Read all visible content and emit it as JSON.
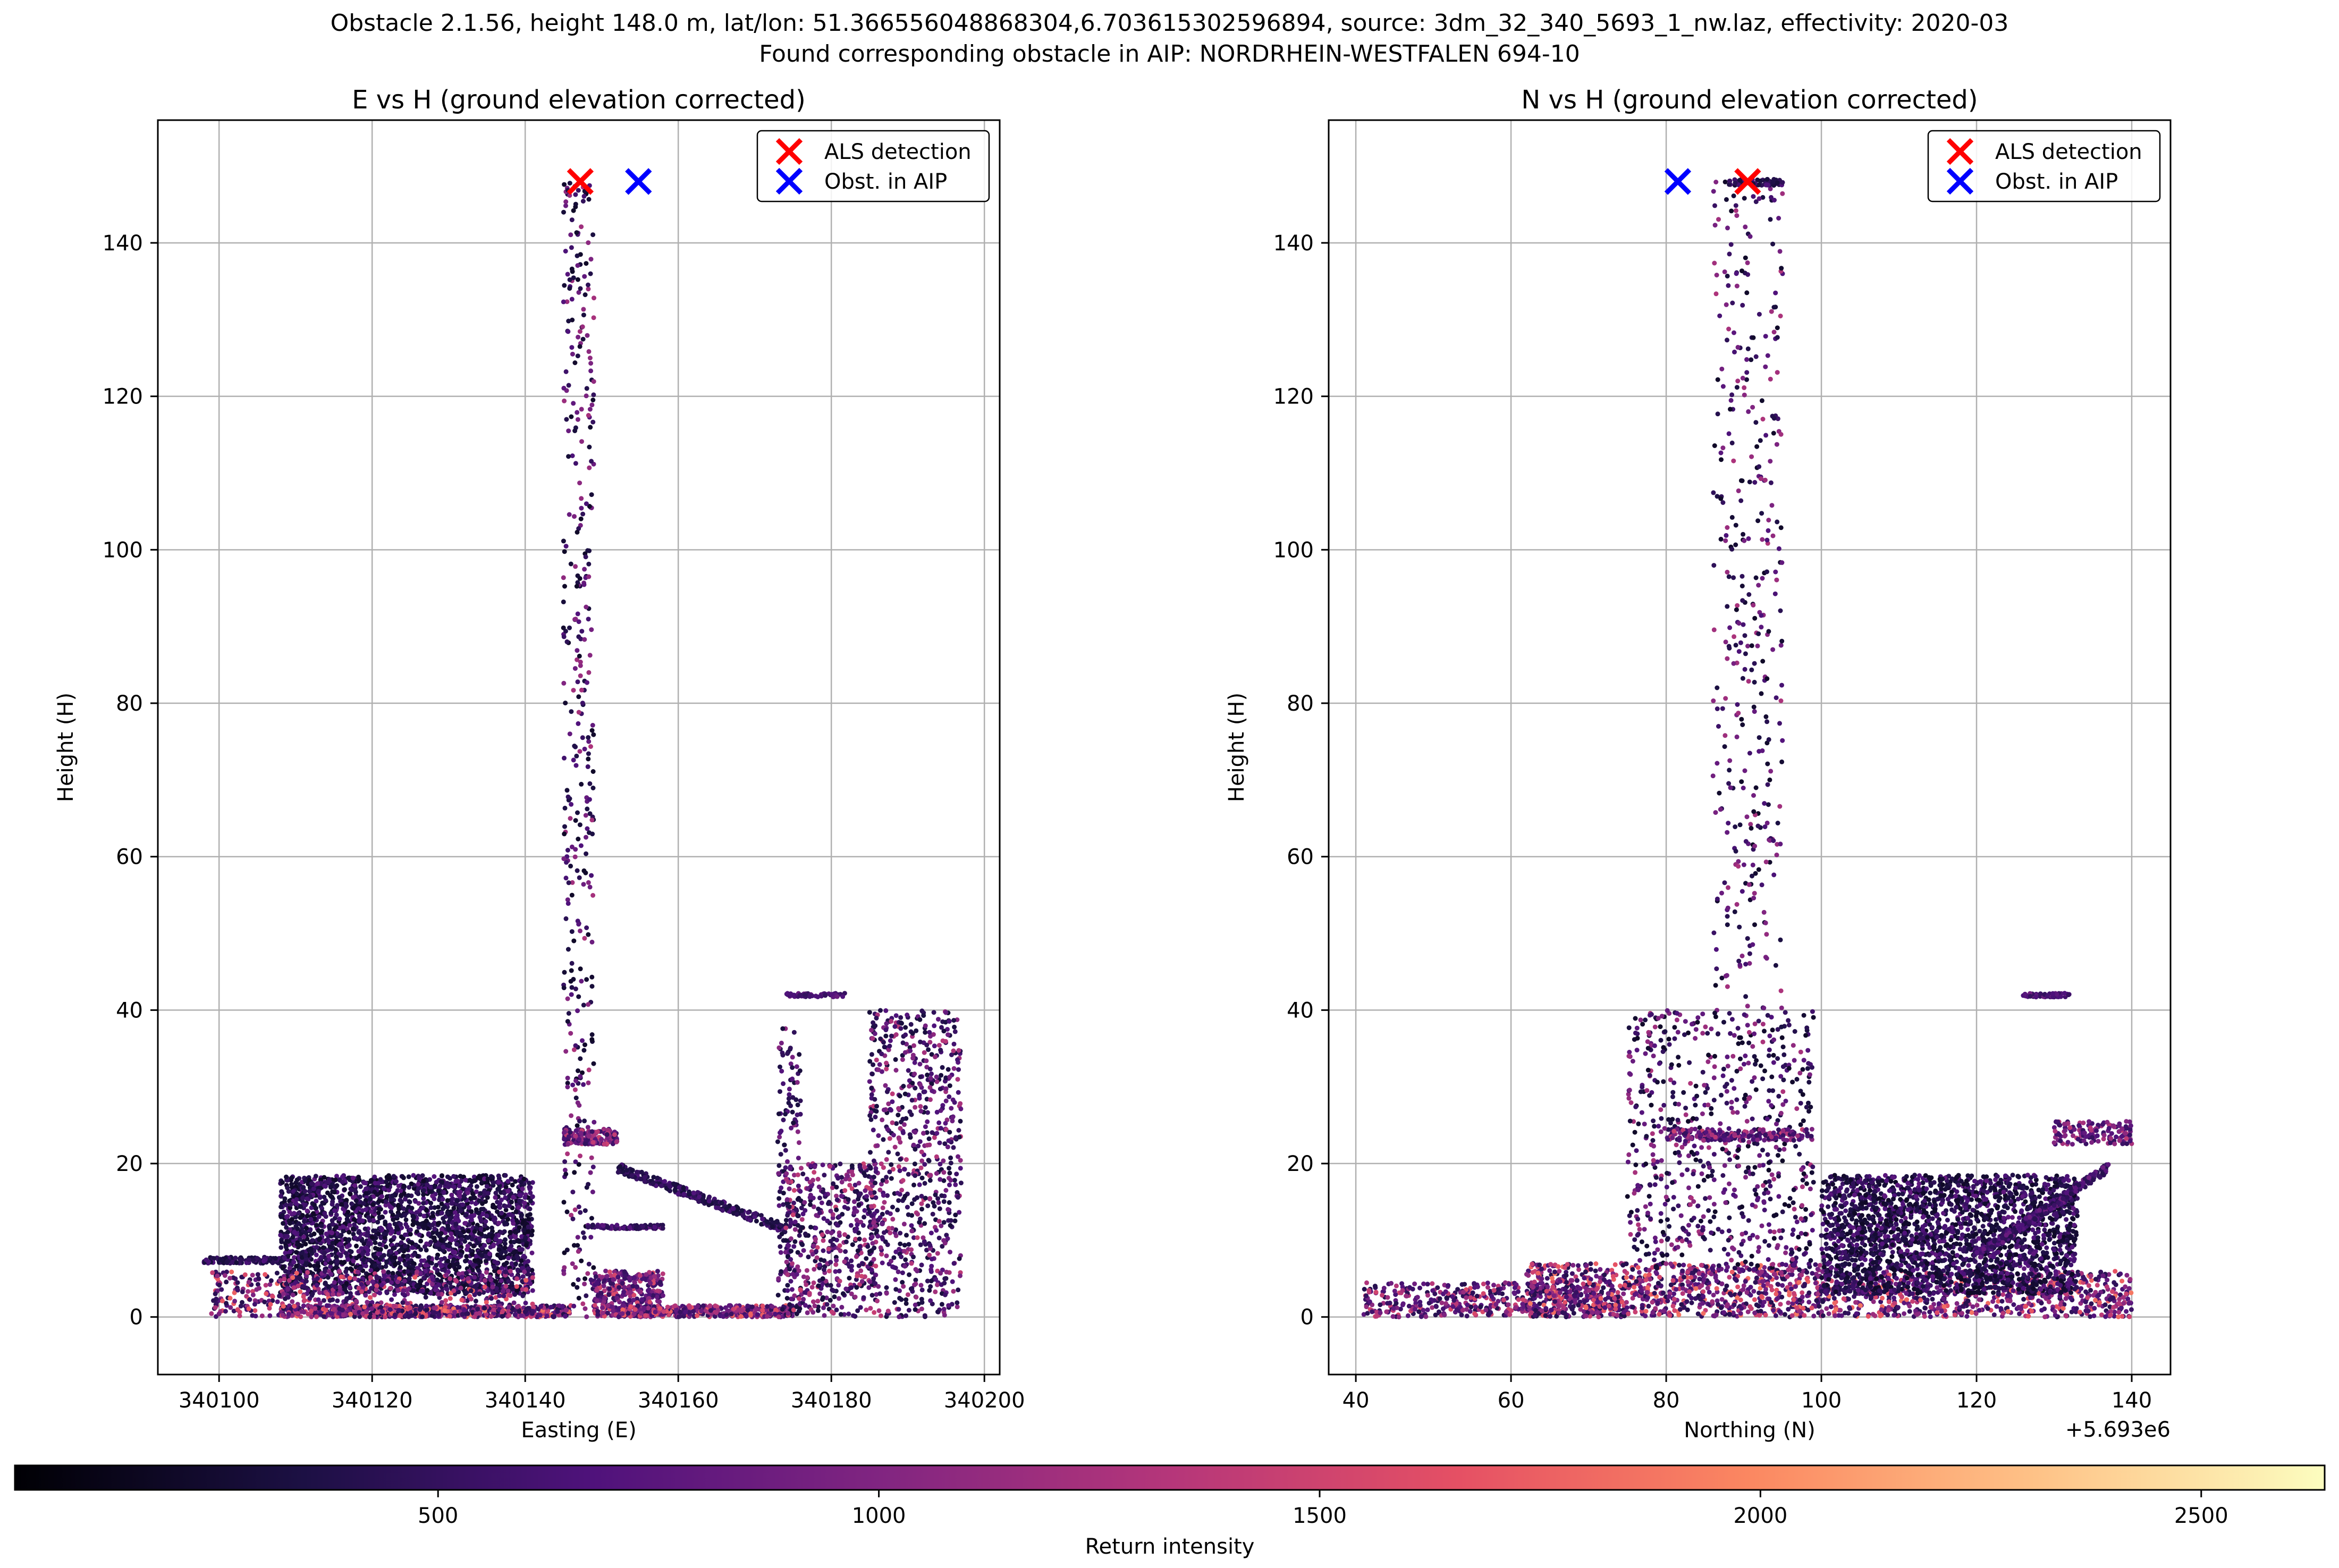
{
  "suptitle": {
    "line1": "Obstacle 2.1.56, height 148.0 m, lat/lon: 51.366556048868304,6.703615302596894, source: 3dm_32_340_5693_1_nw.laz, effectivity: 2020-03",
    "line2": "Found corresponding obstacle in AIP: NORDRHEIN-WESTFALEN 694-10"
  },
  "chart_data": [
    {
      "type": "scatter",
      "title": "E vs H (ground elevation corrected)",
      "xlabel": "Easting (E)",
      "ylabel": "Height (H)",
      "xlim": [
        340092,
        340202
      ],
      "ylim": [
        -7.5,
        156
      ],
      "xticks": [
        340100,
        340120,
        340140,
        340160,
        340180,
        340200
      ],
      "yticks": [
        0,
        20,
        40,
        60,
        80,
        100,
        120,
        140
      ],
      "grid": true,
      "legend_position": "top-right",
      "series": [
        {
          "name": "ALS detection",
          "marker": "x",
          "color": "#ff0000",
          "x": [
            340147.2
          ],
          "y": [
            148.0
          ]
        },
        {
          "name": "Obst. in AIP",
          "marker": "x",
          "color": "#0000ff",
          "x": [
            340154.8
          ],
          "y": [
            148.0
          ]
        }
      ],
      "point_cloud": {
        "colormap": "magma",
        "color_variable": "Return intensity",
        "clusters": [
          {
            "x_range": [
              340098,
              340108
            ],
            "y_range": [
              7.0,
              7.8
            ],
            "intensity": [
              300,
              700
            ],
            "count": 140
          },
          {
            "x_range": [
              340108,
              340141
            ],
            "y_range": [
              3,
              18.5
            ],
            "intensity": [
              200,
              800
            ],
            "count": 2600
          },
          {
            "x_range": [
              340099,
              340141
            ],
            "y_range": [
              0,
              6
            ],
            "intensity": [
              400,
              1800
            ],
            "count": 500
          },
          {
            "x_range": [
              340108,
              340146
            ],
            "y_range": [
              0,
              1.5
            ],
            "intensity": [
              400,
              1900
            ],
            "count": 700
          },
          {
            "x_range": [
              340145,
              340149
            ],
            "y_range": [
              0,
              148
            ],
            "intensity": [
              200,
              1300
            ],
            "count": 420
          },
          {
            "x_range": [
              340145,
              340152
            ],
            "y_range": [
              22.5,
              24.5
            ],
            "intensity": [
              500,
              1500
            ],
            "count": 160
          },
          {
            "x_range": [
              340148,
              340158
            ],
            "y_range": [
              11.5,
              12
            ],
            "intensity": [
              400,
              900
            ],
            "count": 90
          },
          {
            "x_range": [
              340149,
              340158
            ],
            "y_range": [
              0,
              6
            ],
            "intensity": [
              500,
              1600
            ],
            "count": 350
          },
          {
            "x_range": [
              340152,
              340175
            ],
            "y_range": [
              0,
              1.5
            ],
            "intensity": [
              500,
              1800
            ],
            "count": 400
          },
          {
            "x_range": [
              340152,
              340174
            ],
            "y_range": [
              11.5,
              19.5
            ],
            "intensity": [
              300,
              700
            ],
            "count": 260,
            "shape": "diagonal"
          },
          {
            "x_range": [
              340173,
              340176
            ],
            "y_range": [
              0,
              38
            ],
            "intensity": [
              300,
              1100
            ],
            "count": 140
          },
          {
            "x_range": [
              340174,
              340182
            ],
            "y_range": [
              41.7,
              42.2
            ],
            "intensity": [
              500,
              900
            ],
            "count": 60
          },
          {
            "x_range": [
              340174,
              340186
            ],
            "y_range": [
              0,
              20
            ],
            "intensity": [
              300,
              1500
            ],
            "count": 500
          },
          {
            "x_range": [
              340185,
              340197
            ],
            "y_range": [
              0,
              40
            ],
            "intensity": [
              300,
              1400
            ],
            "count": 700
          }
        ]
      }
    },
    {
      "type": "scatter",
      "title": "N vs H (ground elevation corrected)",
      "xlabel": "Northing (N)",
      "ylabel": "Height (H)",
      "x_offset_label": "+5.693e6",
      "xlim": [
        36.5,
        145
      ],
      "ylim": [
        -7.5,
        156
      ],
      "xticks": [
        40,
        60,
        80,
        100,
        120,
        140
      ],
      "yticks": [
        0,
        20,
        40,
        60,
        80,
        100,
        120,
        140
      ],
      "grid": true,
      "legend_position": "top-right",
      "series": [
        {
          "name": "ALS detection",
          "marker": "x",
          "color": "#ff0000",
          "x": [
            90.5
          ],
          "y": [
            148.0
          ]
        },
        {
          "name": "Obst. in AIP",
          "marker": "x",
          "color": "#0000ff",
          "x": [
            81.5
          ],
          "y": [
            148.0
          ]
        }
      ],
      "point_cloud": {
        "colormap": "magma",
        "color_variable": "Return intensity",
        "clusters": [
          {
            "x_range": [
              41,
              75
            ],
            "y_range": [
              0,
              4.5
            ],
            "intensity": [
              400,
              1600
            ],
            "count": 500
          },
          {
            "x_range": [
              62,
              100
            ],
            "y_range": [
              0,
              7
            ],
            "intensity": [
              400,
              1900
            ],
            "count": 900
          },
          {
            "x_range": [
              75,
              99
            ],
            "y_range": [
              6,
              40
            ],
            "intensity": [
              200,
              1300
            ],
            "count": 700
          },
          {
            "x_range": [
              80,
              99
            ],
            "y_range": [
              23,
              24.5
            ],
            "intensity": [
              500,
              1500
            ],
            "count": 200
          },
          {
            "x_range": [
              86,
              95
            ],
            "y_range": [
              40,
              148
            ],
            "intensity": [
              200,
              1300
            ],
            "count": 380
          },
          {
            "x_range": [
              88,
              95
            ],
            "y_range": [
              147.5,
              148.3
            ],
            "intensity": [
              300,
              700
            ],
            "count": 60
          },
          {
            "x_range": [
              100,
              140
            ],
            "y_range": [
              0,
              6
            ],
            "intensity": [
              400,
              1900
            ],
            "count": 700
          },
          {
            "x_range": [
              100,
              133
            ],
            "y_range": [
              3,
              18.5
            ],
            "intensity": [
              200,
              800
            ],
            "count": 2300
          },
          {
            "x_range": [
              120,
              137
            ],
            "y_range": [
              8,
              19.5
            ],
            "intensity": [
              400,
              900
            ],
            "count": 300,
            "shape": "diagonal"
          },
          {
            "x_range": [
              126,
              132
            ],
            "y_range": [
              41.7,
              42.2
            ],
            "intensity": [
              500,
              900
            ],
            "count": 50
          },
          {
            "x_range": [
              130,
              140
            ],
            "y_range": [
              22.5,
              25.5
            ],
            "intensity": [
              500,
              1400
            ],
            "count": 140
          }
        ]
      }
    },
    {
      "type": "colorbar",
      "label": "Return intensity",
      "colormap": "magma",
      "range": [
        20,
        2640
      ],
      "ticks": [
        500,
        1000,
        1500,
        2000,
        2500
      ]
    }
  ]
}
